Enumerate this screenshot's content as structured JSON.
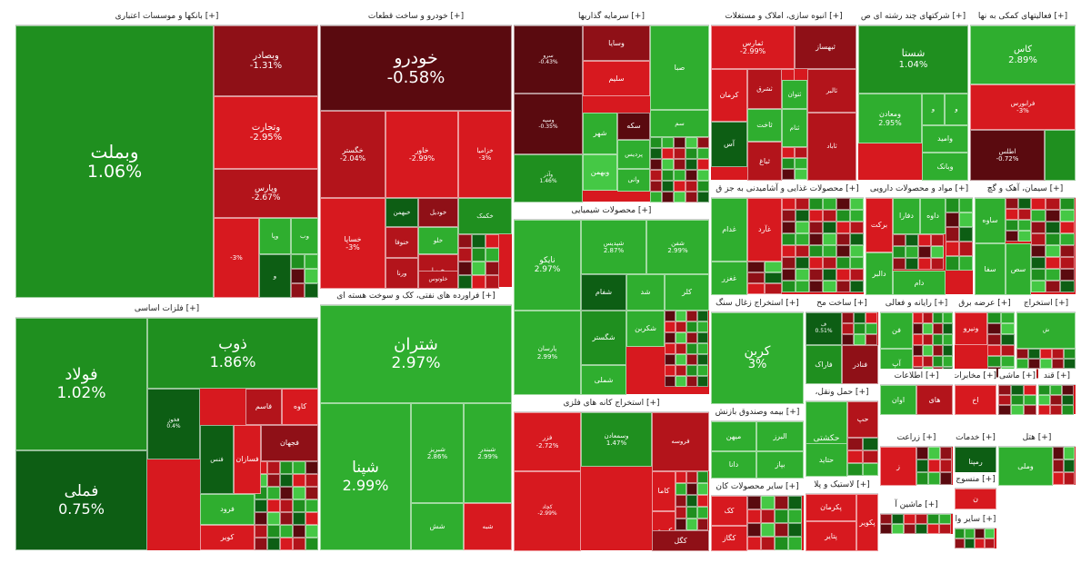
{
  "chart_data": {
    "type": "treemap",
    "colors": {
      "strong_up": "#1f8f1f",
      "up": "#2fae2f",
      "light_up": "#45c845",
      "dark_up": "#0d5e14",
      "strong_down": "#b3141b",
      "down": "#d7191f",
      "dark_down": "#5a0a0f",
      "mid_down": "#8f1017"
    },
    "sectors": [
      {
        "title": "[+] بانکها و موسسات اعتباری",
        "tiles": [
          {
            "name": "وبملت",
            "value": "1.06%",
            "c": "strong_up"
          },
          {
            "name": "وبصادر",
            "value": "-1.31%",
            "c": "mid_down"
          },
          {
            "name": "وتجارت",
            "value": "-2.95%",
            "c": "down"
          },
          {
            "name": "وپارس",
            "value": "-2.67%",
            "c": "strong_down"
          },
          {
            "name": "وپا",
            "value": "",
            "c": "up"
          },
          {
            "name": "وب",
            "value": "",
            "c": "up"
          },
          {
            "name": "",
            "value": "-3%",
            "c": "down"
          },
          {
            "name": "و",
            "value": "",
            "c": "dark_up"
          }
        ]
      },
      {
        "title": "[+] خودرو و ساخت قطعات",
        "tiles": [
          {
            "name": "خودرو",
            "value": "-0.58%",
            "c": "dark_down"
          },
          {
            "name": "خگستر",
            "value": "-2.04%",
            "c": "strong_down"
          },
          {
            "name": "خاور",
            "value": "-2.99%",
            "c": "down"
          },
          {
            "name": "خزامیا",
            "value": "-3%",
            "c": "down"
          },
          {
            "name": "خساپا",
            "value": "-3%",
            "c": "down"
          },
          {
            "name": "خبهمن",
            "value": "",
            "c": "dark_up"
          },
          {
            "name": "خکمک",
            "value": "",
            "c": "strong_up"
          },
          {
            "name": "خودیل",
            "value": "",
            "c": "mid_down"
          },
          {
            "name": "خلو",
            "value": "",
            "c": "up"
          },
          {
            "name": "خنوفا",
            "value": "",
            "c": "strong_down"
          },
          {
            "name": "خپویا",
            "value": "",
            "c": "strong_down"
          },
          {
            "name": "خلوتوس",
            "value": "",
            "c": "strong_down"
          },
          {
            "name": "ورنا",
            "value": "",
            "c": "strong_down"
          }
        ]
      },
      {
        "title": "[+] سرمایه گذاریها",
        "tiles": [
          {
            "name": "سرو",
            "value": "-0.43%",
            "c": "dark_down"
          },
          {
            "name": "وسپه",
            "value": "-0.35%",
            "c": "dark_down"
          },
          {
            "name": "وسایا",
            "value": "",
            "c": "mid_down"
          },
          {
            "name": "سلیم",
            "value": "",
            "c": "down"
          },
          {
            "name": "صبا",
            "value": "",
            "c": "up"
          },
          {
            "name": "شهر",
            "value": "",
            "c": "up"
          },
          {
            "name": "سکه",
            "value": "",
            "c": "dark_down"
          },
          {
            "name": "سم",
            "value": "",
            "c": "up"
          },
          {
            "name": "وبهمن",
            "value": "",
            "c": "light_up"
          },
          {
            "name": "پردیس",
            "value": "",
            "c": "up"
          },
          {
            "name": "وانی",
            "value": "",
            "c": "up"
          },
          {
            "name": "وآذر",
            "value": "1.46%",
            "c": "strong_up"
          }
        ]
      },
      {
        "title": "[+] انبوه سازی، املاک و مستغلات",
        "tiles": [
          {
            "name": "ثمارس",
            "value": "-2.99%",
            "c": "down"
          },
          {
            "name": "ثبهساز",
            "value": "",
            "c": "mid_down"
          },
          {
            "name": "کرمان",
            "value": "",
            "c": "down"
          },
          {
            "name": "ثشاهد",
            "value": "",
            "c": "down"
          },
          {
            "name": "آس",
            "value": "",
            "c": "dark_up"
          },
          {
            "name": "ثاخت",
            "value": "",
            "c": "up"
          },
          {
            "name": "ثنام",
            "value": "",
            "c": "up"
          },
          {
            "name": "ثباغ",
            "value": "",
            "c": "strong_down"
          },
          {
            "name": "ثتوان",
            "value": "",
            "c": "up"
          },
          {
            "name": "ثشرق",
            "value": "",
            "c": "strong_down"
          },
          {
            "name": "ثالبر",
            "value": "",
            "c": "strong_down"
          },
          {
            "name": "ثاباد",
            "value": "",
            "c": "strong_down"
          }
        ]
      },
      {
        "title": "[+] شرکتهای چند رشته ای ص",
        "tiles": [
          {
            "name": "شستا",
            "value": "1.04%",
            "c": "strong_up"
          },
          {
            "name": "ومعادن",
            "value": "2.95%",
            "c": "up"
          },
          {
            "name": "وامید",
            "value": "",
            "c": "up"
          },
          {
            "name": "وبانک",
            "value": "",
            "c": "up"
          },
          {
            "name": "و",
            "value": "",
            "c": "up"
          },
          {
            "name": "و",
            "value": "",
            "c": "up"
          }
        ]
      },
      {
        "title": "[+] فعالیتهای کمکی به نها",
        "tiles": [
          {
            "name": "کاس",
            "value": "2.89%",
            "c": "up"
          },
          {
            "name": "فرابورس",
            "value": "-3%",
            "c": "down"
          },
          {
            "name": "اطلس",
            "value": "-0.72%",
            "c": "dark_down"
          },
          {
            "name": "",
            "value": "",
            "c": "strong_up"
          }
        ]
      },
      {
        "title": "[+] فلزات اساسی",
        "tiles": [
          {
            "name": "فولاد",
            "value": "1.02%",
            "c": "strong_up"
          },
          {
            "name": "ذوب",
            "value": "1.86%",
            "c": "strong_up"
          },
          {
            "name": "فملی",
            "value": "0.75%",
            "c": "dark_up"
          },
          {
            "name": "فخوز",
            "value": "0.4%",
            "c": "dark_up"
          },
          {
            "name": "کاوه",
            "value": "",
            "c": "down"
          },
          {
            "name": "فاسم",
            "value": "",
            "c": "strong_down"
          },
          {
            "name": "فجهان",
            "value": "",
            "c": "mid_down"
          },
          {
            "name": "فسازان",
            "value": "",
            "c": "down"
          },
          {
            "name": "فنس",
            "value": "",
            "c": "dark_up"
          },
          {
            "name": "فرود",
            "value": "",
            "c": "up"
          },
          {
            "name": "کویر",
            "value": "",
            "c": "down"
          }
        ]
      },
      {
        "title": "[+] فراورده های نفتی، کک و سوخت هسته ای",
        "tiles": [
          {
            "name": "شتران",
            "value": "2.97%",
            "c": "up"
          },
          {
            "name": "شپنا",
            "value": "2.99%",
            "c": "up"
          },
          {
            "name": "شبریز",
            "value": "2.86%",
            "c": "up"
          },
          {
            "name": "شبندر",
            "value": "2.99%",
            "c": "up"
          },
          {
            "name": "شش",
            "value": "",
            "c": "up"
          },
          {
            "name": "شبه",
            "value": "",
            "c": "down"
          }
        ]
      },
      {
        "title": "[+] محصولات شیمیایی",
        "tiles": [
          {
            "name": "نایکو",
            "value": "2.97%",
            "c": "up"
          },
          {
            "name": "پارسان",
            "value": "2.99%",
            "c": "up"
          },
          {
            "name": "شپدیس",
            "value": "2.87%",
            "c": "up"
          },
          {
            "name": "شفن",
            "value": "2.99%",
            "c": "up"
          },
          {
            "name": "شفام",
            "value": "",
            "c": "dark_up"
          },
          {
            "name": "شد",
            "value": "",
            "c": "up"
          },
          {
            "name": "کلر",
            "value": "",
            "c": "up"
          },
          {
            "name": "شکربن",
            "value": "",
            "c": "up"
          },
          {
            "name": "شگستر",
            "value": "",
            "c": "strong_up"
          },
          {
            "name": "شملی",
            "value": "",
            "c": "up"
          }
        ]
      },
      {
        "title": "[+] استخراج کانه های فلزی",
        "tiles": [
          {
            "name": "فزر",
            "value": "-2.72%",
            "c": "down"
          },
          {
            "name": "وسمعادن",
            "value": "1.47%",
            "c": "strong_up"
          },
          {
            "name": "فروسه",
            "value": "",
            "c": "strong_down"
          },
          {
            "name": "کچاد",
            "value": "-2.99%",
            "c": "down"
          },
          {
            "name": "کاما",
            "value": "",
            "c": "down"
          },
          {
            "name": "کروی",
            "value": "",
            "c": "down"
          },
          {
            "name": "کگل",
            "value": "",
            "c": "mid_down"
          }
        ]
      },
      {
        "title": "[+] محصولات غذایی و آشامیدنی به جز ق",
        "tiles": [
          {
            "name": "غدام",
            "value": "",
            "c": "up"
          },
          {
            "name": "غآرد",
            "value": "",
            "c": "down"
          },
          {
            "name": "غغزر",
            "value": "",
            "c": "up"
          }
        ]
      },
      {
        "title": "[+] مواد و محصولات دارویی",
        "tiles": [
          {
            "name": "برکت",
            "value": "",
            "c": "down"
          },
          {
            "name": "دالبر",
            "value": "",
            "c": "up"
          },
          {
            "name": "دفارا",
            "value": "",
            "c": "up"
          },
          {
            "name": "داوه",
            "value": "",
            "c": "up"
          },
          {
            "name": "دام",
            "value": "",
            "c": "up"
          }
        ]
      },
      {
        "title": "[+] سیمان، آهک و گچ",
        "tiles": [
          {
            "name": "ساوه",
            "value": "",
            "c": "up"
          },
          {
            "name": "سفا",
            "value": "",
            "c": "up"
          },
          {
            "name": "سص",
            "value": "",
            "c": "up"
          }
        ]
      },
      {
        "title": "[+] استخراج زغال سنگ",
        "tiles": [
          {
            "name": "کربن",
            "value": "3%",
            "c": "up"
          }
        ]
      },
      {
        "title": "[+] ساخت مح",
        "tiles": [
          {
            "name": "ف",
            "value": "0.51%",
            "c": "dark_up"
          },
          {
            "name": "فاراک",
            "value": "",
            "c": "strong_up"
          },
          {
            "name": "فنادر",
            "value": "",
            "c": "mid_down"
          }
        ]
      },
      {
        "title": "[+] بیمه وصندوق بازنش",
        "tiles": [
          {
            "name": "میهن",
            "value": "",
            "c": "up"
          },
          {
            "name": "البرز",
            "value": "",
            "c": "up"
          },
          {
            "name": "دانا",
            "value": "",
            "c": "up"
          },
          {
            "name": "بپاز",
            "value": "",
            "c": "up"
          }
        ]
      },
      {
        "title": "[+] حمل ونقل،",
        "tiles": [
          {
            "name": "حکشتی",
            "value": "",
            "c": "up"
          },
          {
            "name": "حتاید",
            "value": "",
            "c": "up"
          },
          {
            "name": "حپ",
            "value": "",
            "c": "strong_down"
          }
        ]
      },
      {
        "title": "[+] سایر محصولات کان",
        "tiles": [
          {
            "name": "کگاز",
            "value": "",
            "c": "down"
          },
          {
            "name": "کک",
            "value": "",
            "c": "down"
          }
        ]
      },
      {
        "title": "[+] لاستیک و پلا",
        "tiles": [
          {
            "name": "پکرمان",
            "value": "",
            "c": "down"
          },
          {
            "name": "پتایر",
            "value": "",
            "c": "down"
          },
          {
            "name": "پکویر",
            "value": "",
            "c": "down"
          }
        ]
      },
      {
        "title": "[+] رایانه و فعالی",
        "tiles": [
          {
            "name": "فن",
            "value": "",
            "c": "up"
          },
          {
            "name": "آپ",
            "value": "",
            "c": "up"
          }
        ]
      },
      {
        "title": "[+] عرضه برق",
        "tiles": [
          {
            "name": "ونیرو",
            "value": "",
            "c": "down"
          }
        ]
      },
      {
        "title": "[+] استخراج",
        "tiles": [
          {
            "name": "ش",
            "value": "",
            "c": "up"
          }
        ]
      },
      {
        "title": "[+] اطلاعات",
        "tiles": [
          {
            "name": "اوان",
            "value": "",
            "c": "up"
          },
          {
            "name": "های",
            "value": "",
            "c": "strong_down"
          }
        ]
      },
      {
        "title": "[+] مخابرات",
        "tiles": [
          {
            "name": "اخ",
            "value": "",
            "c": "down"
          }
        ]
      },
      {
        "title": "[+] ماشی",
        "tiles": []
      },
      {
        "title": "[+] قند",
        "tiles": []
      },
      {
        "title": "[+] زراعت",
        "tiles": [
          {
            "name": "ز",
            "value": "",
            "c": "down"
          }
        ]
      },
      {
        "title": "[+] خدمات",
        "tiles": [
          {
            "name": "رمپنا",
            "value": "",
            "c": "dark_up"
          }
        ]
      },
      {
        "title": "[+] هتل",
        "tiles": [
          {
            "name": "وملی",
            "value": "",
            "c": "up"
          }
        ]
      },
      {
        "title": "[+] منسوج",
        "tiles": [
          {
            "name": "ن",
            "value": "",
            "c": "down"
          }
        ]
      },
      {
        "title": "[+] ماشین آ",
        "tiles": []
      },
      {
        "title": "[+] سایر وا",
        "tiles": []
      }
    ]
  }
}
